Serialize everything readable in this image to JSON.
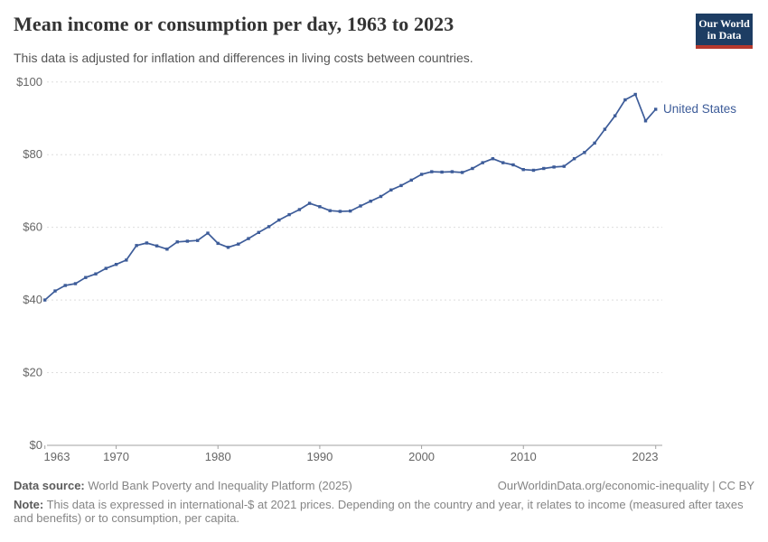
{
  "header": {
    "title": "Mean income or consumption per day, 1963 to 2023",
    "subtitle": "This data is adjusted for inflation and differences in living costs between countries."
  },
  "logo": {
    "line1": "Our World",
    "line2": "in Data"
  },
  "chart_data": {
    "type": "line",
    "title": "Mean income or consumption per day, 1963 to 2023",
    "entity_label": "United States",
    "line_color": "#3d5c99",
    "grid_color": "#dedede",
    "axis_color": "#a1a1a1",
    "tick_label_color": "#666666",
    "ylim": [
      0,
      100
    ],
    "yticks": [
      {
        "value": 0,
        "label": "$0"
      },
      {
        "value": 20,
        "label": "$20"
      },
      {
        "value": 40,
        "label": "$40"
      },
      {
        "value": 60,
        "label": "$60"
      },
      {
        "value": 80,
        "label": "$80"
      },
      {
        "value": 100,
        "label": "$100"
      }
    ],
    "xticks": [
      1963,
      1970,
      1980,
      1990,
      2000,
      2010,
      2023
    ],
    "x": [
      1963,
      1964,
      1965,
      1966,
      1967,
      1968,
      1969,
      1970,
      1971,
      1972,
      1973,
      1974,
      1975,
      1976,
      1977,
      1978,
      1979,
      1980,
      1981,
      1982,
      1983,
      1984,
      1985,
      1986,
      1987,
      1988,
      1989,
      1990,
      1991,
      1992,
      1993,
      1994,
      1995,
      1996,
      1997,
      1998,
      1999,
      2000,
      2001,
      2002,
      2003,
      2004,
      2005,
      2006,
      2007,
      2008,
      2009,
      2010,
      2011,
      2012,
      2013,
      2014,
      2015,
      2016,
      2017,
      2018,
      2019,
      2020,
      2021,
      2022,
      2023
    ],
    "series": [
      {
        "name": "United States",
        "values": [
          40.0,
          42.5,
          44.0,
          44.5,
          46.2,
          47.2,
          48.7,
          49.8,
          51.0,
          55.0,
          55.7,
          54.9,
          54.0,
          56.0,
          56.2,
          56.4,
          58.4,
          55.6,
          54.5,
          55.4,
          56.9,
          58.6,
          60.2,
          62.0,
          63.5,
          64.9,
          66.6,
          65.7,
          64.6,
          64.4,
          64.5,
          65.9,
          67.2,
          68.5,
          70.3,
          71.5,
          73.0,
          74.6,
          75.3,
          75.2,
          75.3,
          75.1,
          76.2,
          77.8,
          78.9,
          77.8,
          77.2,
          75.9,
          75.7,
          76.2,
          76.6,
          76.8,
          78.9,
          80.6,
          83.2,
          87.0,
          90.7,
          95.1,
          96.6,
          89.3,
          92.5
        ]
      }
    ],
    "legend_position": "end-of-line label"
  },
  "footer": {
    "source_label": "Data source:",
    "source_text": " World Bank Poverty and Inequality Platform (2025)",
    "link_text": "OurWorldinData.org/economic-inequality | CC BY",
    "note_label": "Note:",
    "note_text": " This data is expressed in international-$ at 2021 prices. Depending on the country and year, it relates to income (measured after taxes and benefits) or to consumption, per capita."
  }
}
